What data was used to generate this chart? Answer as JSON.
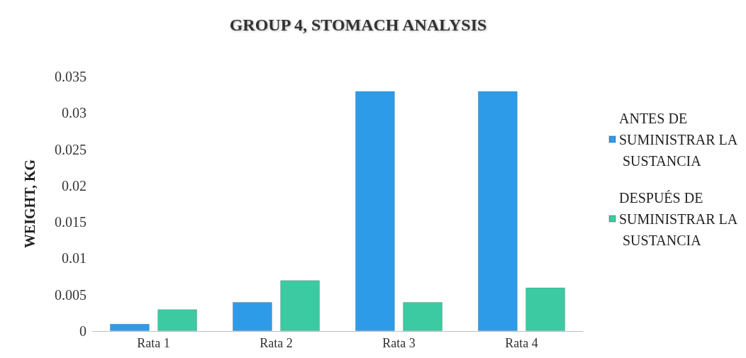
{
  "chart_data": {
    "type": "bar",
    "title": "GROUP 4, STOMACH ANALYSIS",
    "ylabel": "WEIGHT, KG",
    "categories": [
      "Rata 1",
      "Rata 2",
      "Rata 3",
      "Rata 4"
    ],
    "series": [
      {
        "name": "ANTES DE SUMINISTRAR LA SUSTANCIA",
        "color": "#2e9be9",
        "values": [
          0.001,
          0.004,
          0.033,
          0.033
        ]
      },
      {
        "name": "DESPUÉS DE SUMINISTRAR LA SUSTANCIA",
        "color": "#3ccaa2",
        "values": [
          0.003,
          0.007,
          0.004,
          0.006
        ]
      }
    ],
    "ylim": [
      0,
      0.035
    ],
    "yticks": [
      0,
      0.005,
      0.01,
      0.015,
      0.02,
      0.025,
      0.03,
      0.035
    ],
    "grid": false,
    "legend": "right"
  }
}
